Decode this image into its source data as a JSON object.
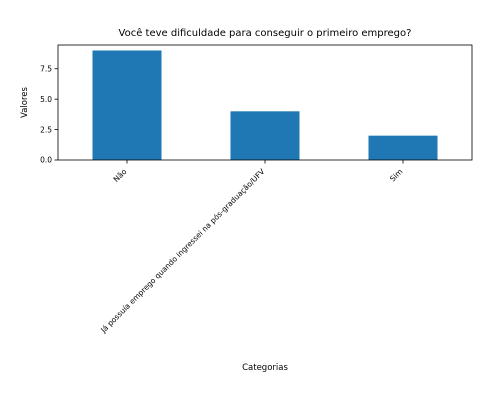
{
  "chart_data": {
    "type": "bar",
    "title": "Você teve dificuldade para conseguir o primeiro emprego?",
    "xlabel": "Categorias",
    "ylabel": "Valores",
    "categories": [
      "Não",
      "Já possuía emprego quando ingressei na pós-graduação/UFV",
      "Sim"
    ],
    "values": [
      9,
      4,
      2
    ],
    "ylim": [
      0,
      9.45
    ],
    "yticks": [
      0.0,
      2.5,
      5.0,
      7.5
    ],
    "ytick_labels": [
      "0.0",
      "2.5",
      "5.0",
      "7.5"
    ],
    "bar_color": "#1f77b4",
    "grid": false,
    "legend": false
  }
}
